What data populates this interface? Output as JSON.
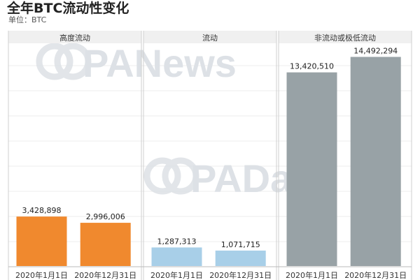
{
  "title": "全年BTC流动性变化",
  "unit_label": "单位：BTC",
  "watermarks": [
    "PANews",
    "PAData"
  ],
  "chart_data": [
    {
      "type": "bar",
      "title": "高度流动",
      "categories": [
        "2020年1月1日",
        "2020年12月31日"
      ],
      "values": [
        3428898,
        2996006
      ],
      "value_labels": [
        "3,428,898",
        "2,996,006"
      ],
      "color": "#f0892e",
      "ylim": [
        0,
        15000000
      ]
    },
    {
      "type": "bar",
      "title": "流动",
      "categories": [
        "2020年1月1日",
        "2020年12月31日"
      ],
      "values": [
        1287313,
        1071715
      ],
      "value_labels": [
        "1,287,313",
        "1,071,715"
      ],
      "color": "#a8cfe8",
      "ylim": [
        0,
        15000000
      ]
    },
    {
      "type": "bar",
      "title": "非流动或极低流动",
      "categories": [
        "2020年1月1日",
        "2020年12月31日"
      ],
      "values": [
        13420510,
        14492294
      ],
      "value_labels": [
        "13,420,510",
        "14,492,294"
      ],
      "color": "#98a2a6",
      "ylim": [
        0,
        15000000
      ]
    }
  ]
}
